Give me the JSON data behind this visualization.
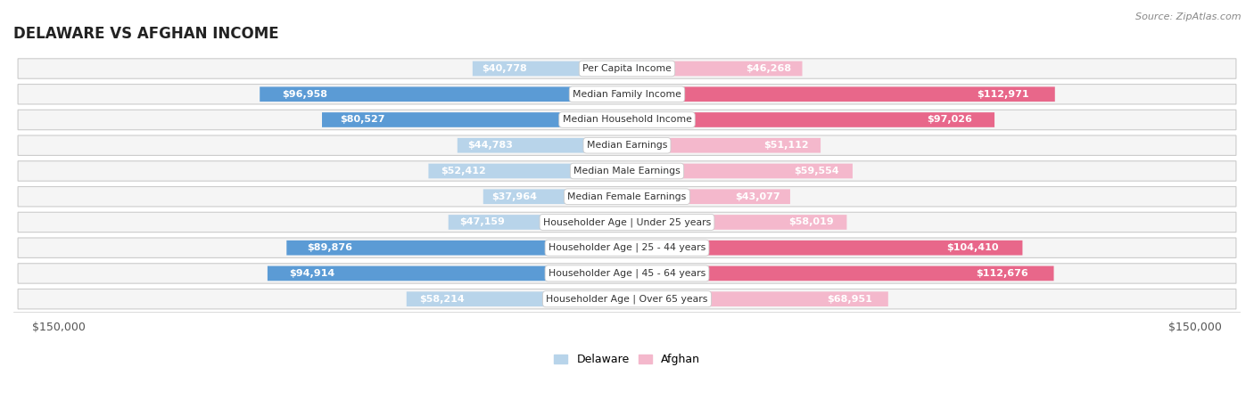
{
  "title": "DELAWARE VS AFGHAN INCOME",
  "source": "Source: ZipAtlas.com",
  "categories": [
    "Per Capita Income",
    "Median Family Income",
    "Median Household Income",
    "Median Earnings",
    "Median Male Earnings",
    "Median Female Earnings",
    "Householder Age | Under 25 years",
    "Householder Age | 25 - 44 years",
    "Householder Age | 45 - 64 years",
    "Householder Age | Over 65 years"
  ],
  "delaware_values": [
    40778,
    96958,
    80527,
    44783,
    52412,
    37964,
    47159,
    89876,
    94914,
    58214
  ],
  "afghan_values": [
    46268,
    112971,
    97026,
    51112,
    59554,
    43077,
    58019,
    104410,
    112676,
    68951
  ],
  "delaware_labels": [
    "$40,778",
    "$96,958",
    "$80,527",
    "$44,783",
    "$52,412",
    "$37,964",
    "$47,159",
    "$89,876",
    "$94,914",
    "$58,214"
  ],
  "afghan_labels": [
    "$46,268",
    "$112,971",
    "$97,026",
    "$51,112",
    "$59,554",
    "$43,077",
    "$58,019",
    "$104,410",
    "$112,676",
    "$68,951"
  ],
  "max_value": 150000,
  "delaware_color_light": "#b8d4ea",
  "delaware_color_dark": "#5b9bd5",
  "afghan_color_light": "#f4b8cc",
  "afghan_color_dark": "#e8678a",
  "bg_color": "#ffffff",
  "row_bg_color": "#f5f5f5",
  "row_border_color": "#cccccc",
  "legend_delaware": "Delaware",
  "legend_afghan": "Afghan",
  "x_tick_label_left": "$150,000",
  "x_tick_label_right": "$150,000",
  "inside_threshold": 0.25
}
